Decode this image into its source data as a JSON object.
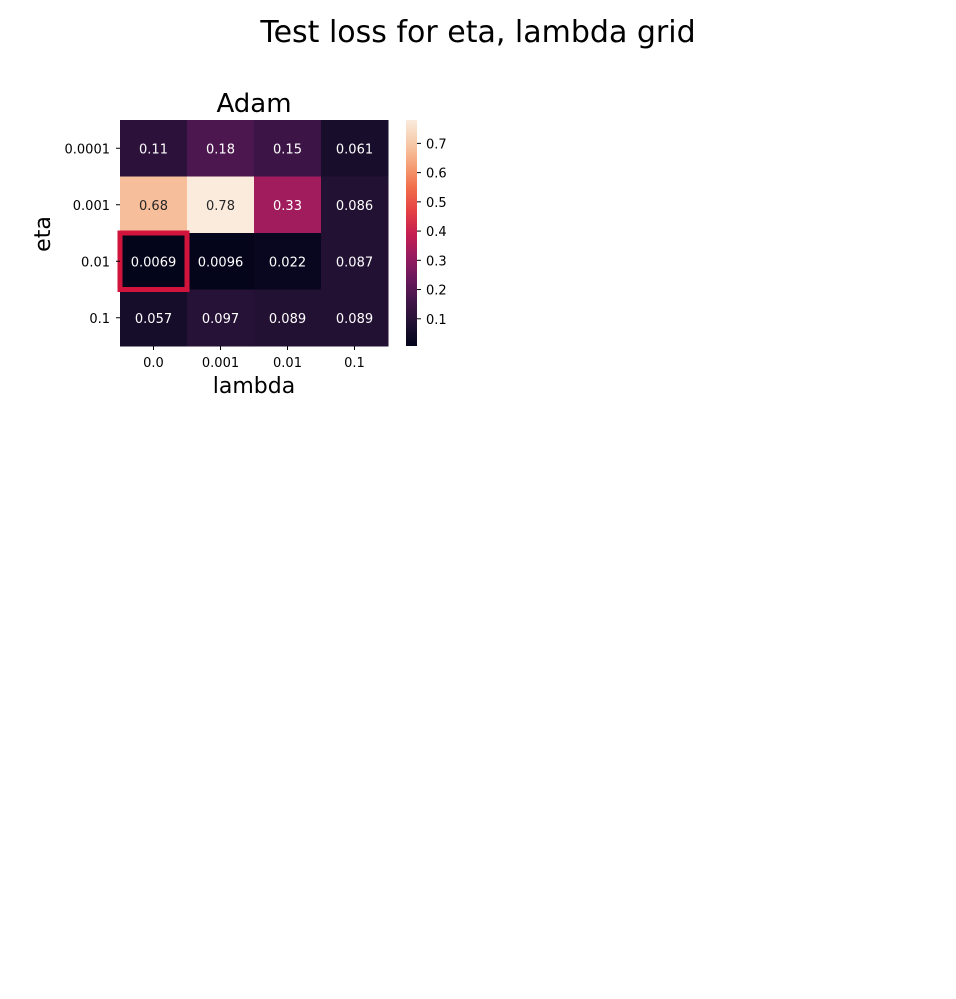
{
  "figure": {
    "suptitle": "Test loss for eta, lambda grid"
  },
  "chart_data": {
    "type": "heatmap",
    "title": "Adam",
    "xlabel": "lambda",
    "ylabel": "eta",
    "x_categories": [
      "0.0",
      "0.001",
      "0.01",
      "0.1"
    ],
    "y_categories": [
      "0.0001",
      "0.001",
      "0.01",
      "0.1"
    ],
    "values": [
      [
        0.11,
        0.18,
        0.15,
        0.061
      ],
      [
        0.68,
        0.78,
        0.33,
        0.086
      ],
      [
        0.0069,
        0.0096,
        0.022,
        0.087
      ],
      [
        0.057,
        0.097,
        0.089,
        0.089
      ]
    ],
    "cell_labels": [
      [
        "0.11",
        "0.18",
        "0.15",
        "0.061"
      ],
      [
        "0.68",
        "0.78",
        "0.33",
        "0.086"
      ],
      [
        "0.0069",
        "0.0096",
        "0.022",
        "0.087"
      ],
      [
        "0.057",
        "0.097",
        "0.089",
        "0.089"
      ]
    ],
    "colormap": "rocket",
    "vmin": 0.0069,
    "vmax": 0.78,
    "colorbar": {
      "ticks": [
        0.1,
        0.2,
        0.3,
        0.4,
        0.5,
        0.6,
        0.7
      ],
      "tick_labels": [
        "0.1",
        "0.2",
        "0.3",
        "0.4",
        "0.5",
        "0.6",
        "0.7"
      ]
    },
    "highlight": {
      "row": 2,
      "col": 0,
      "color": "#d0143c"
    }
  }
}
